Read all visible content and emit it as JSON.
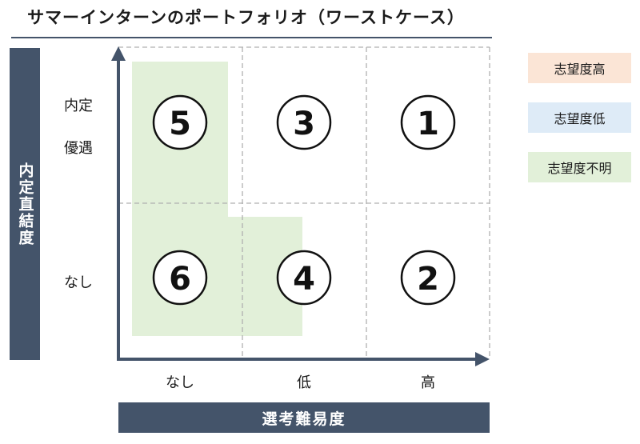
{
  "title": "サマーインターンのポートフォリオ（ワーストケース）",
  "y_axis": {
    "label": "内定直結度",
    "ticks": [
      "内定",
      "優遇",
      "なし"
    ]
  },
  "x_axis": {
    "label": "選考難易度",
    "ticks": [
      "なし",
      "低",
      "高"
    ]
  },
  "cells": {
    "top_left": "5",
    "top_middle": "3",
    "top_right": "1",
    "bottom_left": "6",
    "bottom_middle": "4",
    "bottom_right": "2"
  },
  "legend": [
    {
      "label": "志望度高",
      "color": "#fbe5d6"
    },
    {
      "label": "志望度低",
      "color": "#deebf7"
    },
    {
      "label": "志望度不明",
      "color": "#e2f0d9"
    }
  ],
  "highlight_color": "#e2f0d9",
  "axis_color": "#44546a"
}
